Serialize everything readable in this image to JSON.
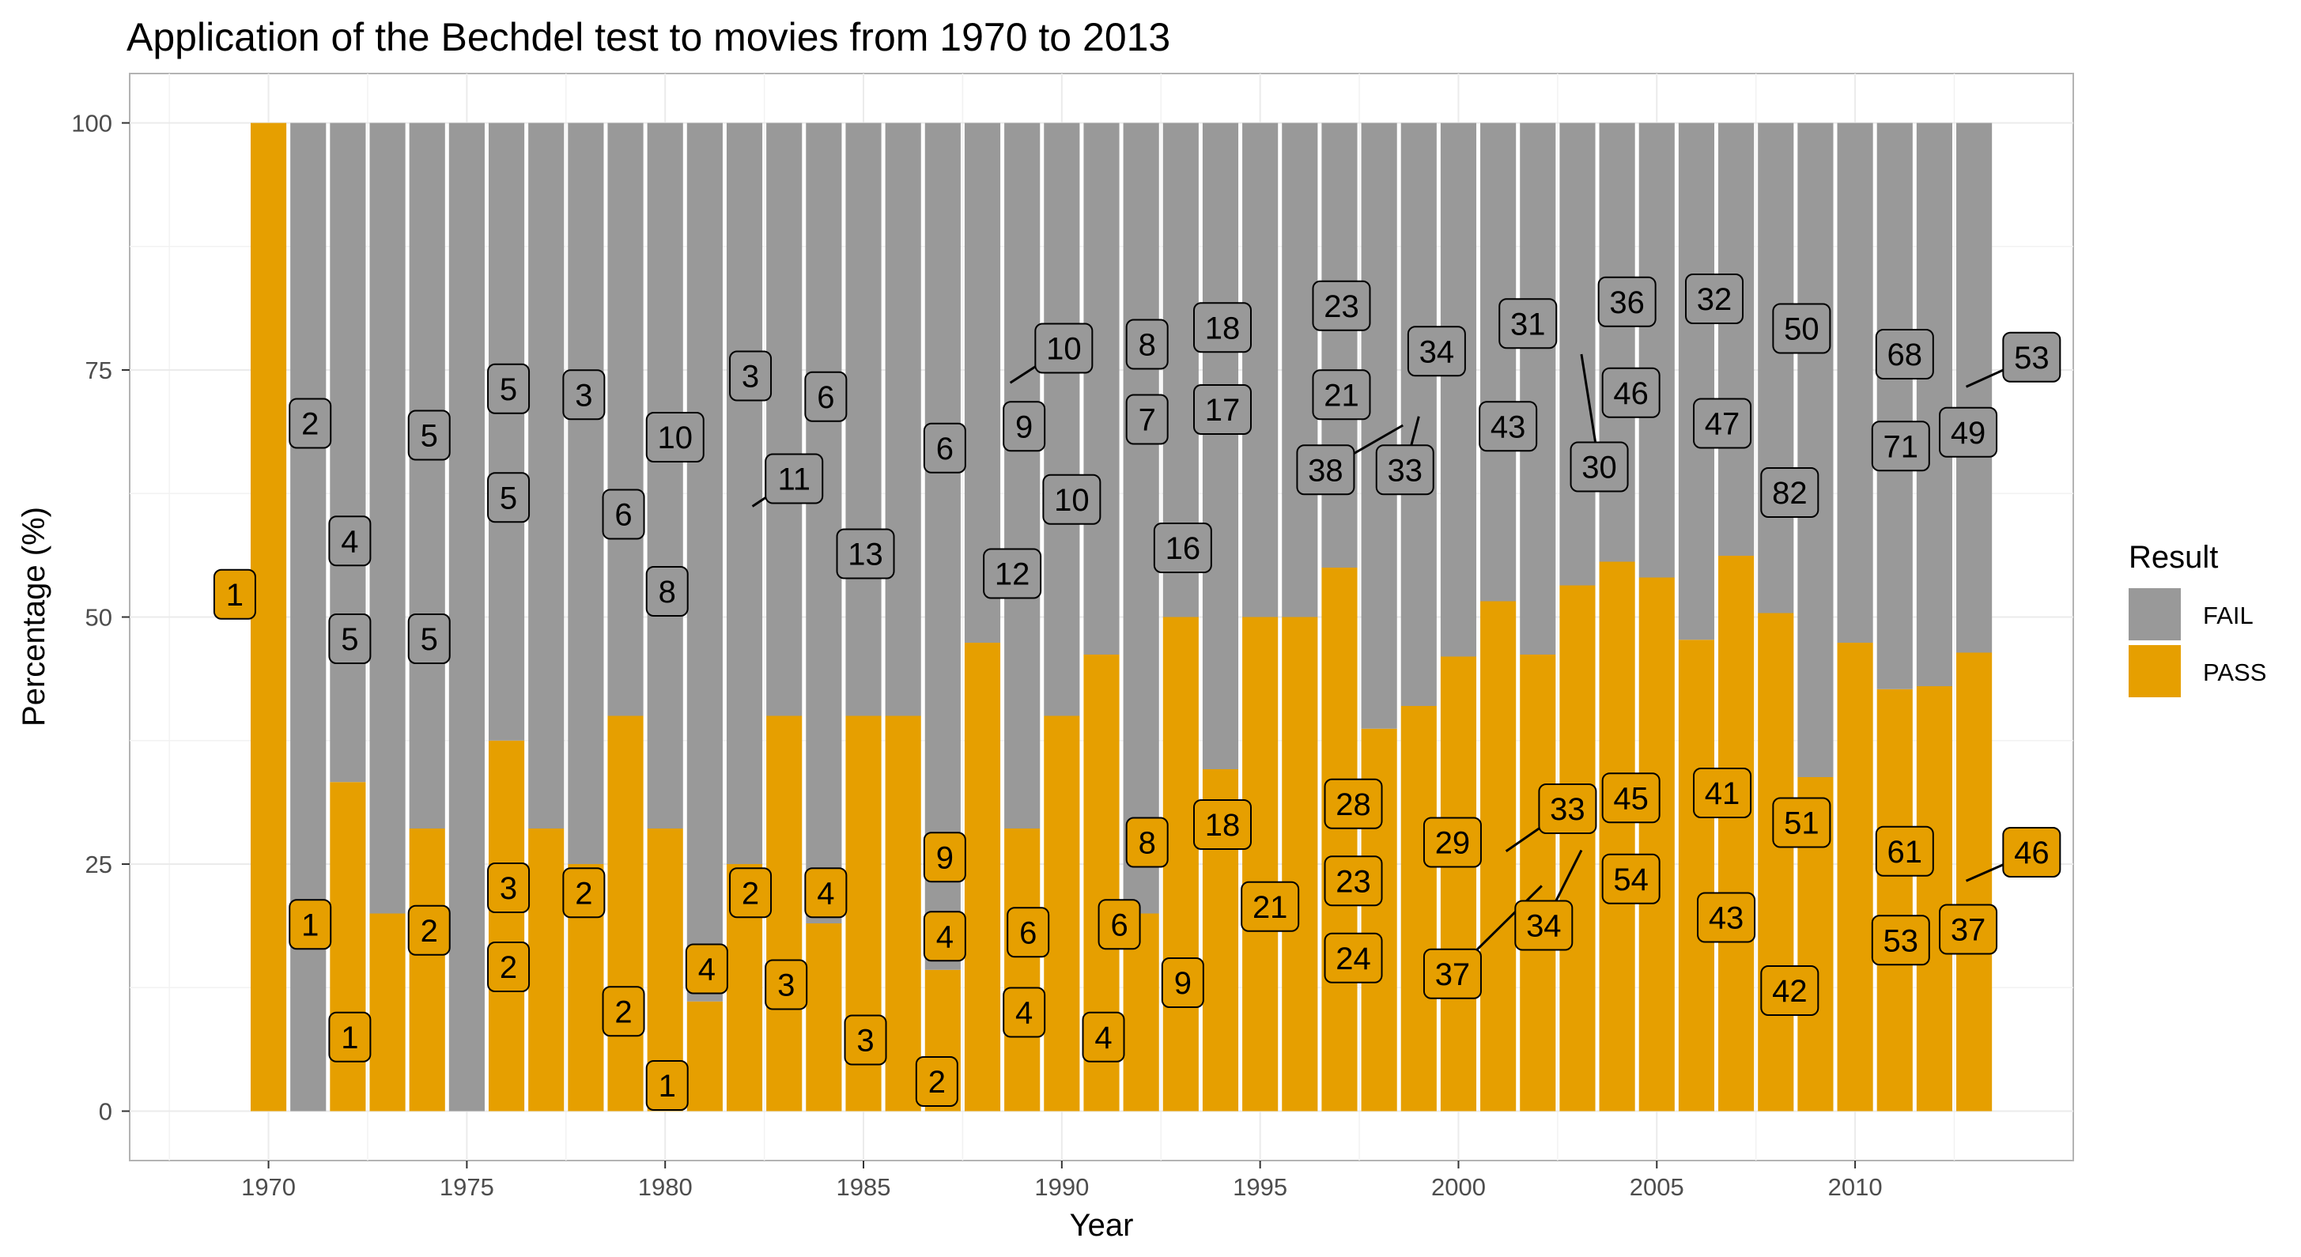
{
  "chart_data": {
    "type": "bar",
    "stacked": true,
    "title": "Application of the Bechdel test to movies from 1970 to 2013",
    "xlabel": "Year",
    "ylabel": "Percentage (%)",
    "xlim": [
      1966.5,
      2015.5
    ],
    "ylim": [
      -5,
      105
    ],
    "x_ticks": [
      1970,
      1975,
      1980,
      1985,
      1990,
      1995,
      2000,
      2005,
      2010
    ],
    "y_ticks": [
      0,
      25,
      50,
      75,
      100
    ],
    "grid": true,
    "legend": {
      "title": "Result",
      "position": "right",
      "entries": [
        {
          "name": "FAIL",
          "color": "#999999"
        },
        {
          "name": "PASS",
          "color": "#E69F00"
        }
      ]
    },
    "x": [
      1970,
      1971,
      1972,
      1973,
      1974,
      1975,
      1976,
      1977,
      1978,
      1979,
      1980,
      1981,
      1982,
      1983,
      1984,
      1985,
      1986,
      1987,
      1988,
      1989,
      1990,
      1991,
      1992,
      1993,
      1994,
      1995,
      1996,
      1997,
      1998,
      1999,
      2000,
      2001,
      2002,
      2003,
      2004,
      2005,
      2006,
      2007,
      2008,
      2009,
      2010,
      2011,
      2012,
      2013
    ],
    "series": [
      {
        "name": "PASS",
        "values": [
          100,
          0,
          33.3,
          20,
          28.6,
          0,
          37.5,
          28.6,
          25,
          40,
          28.6,
          11.1,
          25,
          40,
          19,
          40,
          40,
          14.3,
          47.4,
          28.6,
          40,
          46.2,
          20,
          50,
          34.6,
          50,
          50,
          55,
          38.7,
          41,
          46,
          51.6,
          46.2,
          53.2,
          55.6,
          54,
          47.7,
          56.2,
          50.4,
          33.8,
          47.4,
          42.7,
          43,
          46.4
        ]
      },
      {
        "name": "FAIL",
        "values": [
          0,
          100,
          66.7,
          80,
          71.4,
          100,
          62.5,
          71.4,
          75,
          60,
          71.4,
          88.9,
          75,
          60,
          81,
          60,
          60,
          85.7,
          52.6,
          71.4,
          60,
          53.8,
          80,
          50,
          65.4,
          50,
          50,
          45,
          61.3,
          59,
          54,
          48.4,
          53.8,
          46.8,
          44.4,
          46,
          52.3,
          43.8,
          49.6,
          66.2,
          52.6,
          57.3,
          57,
          53.6
        ]
      }
    ],
    "annotations": [
      {
        "text": "1",
        "result": "PASS",
        "x": 1969.15,
        "y": 52.3
      },
      {
        "text": "2",
        "result": "FAIL",
        "x": 1971.05,
        "y": 69.6
      },
      {
        "text": "1",
        "result": "PASS",
        "x": 1971.05,
        "y": 18.9
      },
      {
        "text": "4",
        "result": "FAIL",
        "x": 1972.05,
        "y": 57.7
      },
      {
        "text": "5",
        "result": "FAIL",
        "x": 1972.05,
        "y": 47.8
      },
      {
        "text": "1",
        "result": "PASS",
        "x": 1972.05,
        "y": 7.5
      },
      {
        "text": "5",
        "result": "FAIL",
        "x": 1974.05,
        "y": 68.4
      },
      {
        "text": "5",
        "result": "FAIL",
        "x": 1974.05,
        "y": 47.8
      },
      {
        "text": "2",
        "result": "PASS",
        "x": 1974.05,
        "y": 18.3
      },
      {
        "text": "5",
        "result": "FAIL",
        "x": 1976.05,
        "y": 73.1
      },
      {
        "text": "5",
        "result": "FAIL",
        "x": 1976.05,
        "y": 62.1
      },
      {
        "text": "3",
        "result": "PASS",
        "x": 1976.05,
        "y": 22.6
      },
      {
        "text": "2",
        "result": "PASS",
        "x": 1976.05,
        "y": 14.6
      },
      {
        "text": "3",
        "result": "FAIL",
        "x": 1977.95,
        "y": 72.5
      },
      {
        "text": "2",
        "result": "PASS",
        "x": 1977.95,
        "y": 22.1
      },
      {
        "text": "6",
        "result": "FAIL",
        "x": 1978.95,
        "y": 60.4
      },
      {
        "text": "2",
        "result": "PASS",
        "x": 1978.95,
        "y": 10.1
      },
      {
        "text": "10",
        "result": "FAIL",
        "x": 1980.25,
        "y": 68.2
      },
      {
        "text": "8",
        "result": "FAIL",
        "x": 1980.05,
        "y": 52.6
      },
      {
        "text": "1",
        "result": "PASS",
        "x": 1980.05,
        "y": 2.6
      },
      {
        "text": "4",
        "result": "PASS",
        "x": 1981.05,
        "y": 14.4
      },
      {
        "text": "3",
        "result": "FAIL",
        "x": 1982.15,
        "y": 74.4
      },
      {
        "text": "11",
        "result": "FAIL",
        "x": 1983.25,
        "y": 64,
        "leader": [
          1982.2,
          61.2
        ]
      },
      {
        "text": "2",
        "result": "PASS",
        "x": 1982.15,
        "y": 22.1
      },
      {
        "text": "3",
        "result": "PASS",
        "x": 1983.05,
        "y": 12.8
      },
      {
        "text": "6",
        "result": "FAIL",
        "x": 1984.05,
        "y": 72.3
      },
      {
        "text": "4",
        "result": "PASS",
        "x": 1984.05,
        "y": 22.1
      },
      {
        "text": "13",
        "result": "FAIL",
        "x": 1985.05,
        "y": 56.4
      },
      {
        "text": "3",
        "result": "PASS",
        "x": 1985.05,
        "y": 7.2
      },
      {
        "text": "6",
        "result": "FAIL",
        "x": 1987.05,
        "y": 67.1
      },
      {
        "text": "9",
        "result": "PASS",
        "x": 1987.05,
        "y": 25.7
      },
      {
        "text": "4",
        "result": "PASS",
        "x": 1987.05,
        "y": 17.7
      },
      {
        "text": "2",
        "result": "PASS",
        "x": 1986.85,
        "y": 3
      },
      {
        "text": "10",
        "result": "FAIL",
        "x": 1990.05,
        "y": 77.2,
        "leader": [
          1988.7,
          73.7
        ]
      },
      {
        "text": "9",
        "result": "FAIL",
        "x": 1989.05,
        "y": 69.3
      },
      {
        "text": "12",
        "result": "FAIL",
        "x": 1988.75,
        "y": 54.4
      },
      {
        "text": "6",
        "result": "PASS",
        "x": 1989.15,
        "y": 18.1
      },
      {
        "text": "4",
        "result": "PASS",
        "x": 1989.05,
        "y": 10
      },
      {
        "text": "10",
        "result": "FAIL",
        "x": 1990.25,
        "y": 61.9
      },
      {
        "text": "4",
        "result": "PASS",
        "x": 1991.05,
        "y": 7.5
      },
      {
        "text": "8",
        "result": "FAIL",
        "x": 1992.15,
        "y": 77.6
      },
      {
        "text": "7",
        "result": "FAIL",
        "x": 1992.15,
        "y": 70
      },
      {
        "text": "8",
        "result": "PASS",
        "x": 1992.15,
        "y": 27.2
      },
      {
        "text": "6",
        "result": "PASS",
        "x": 1991.45,
        "y": 18.9
      },
      {
        "text": "18",
        "result": "FAIL",
        "x": 1994.05,
        "y": 79.3
      },
      {
        "text": "17",
        "result": "FAIL",
        "x": 1994.05,
        "y": 71
      },
      {
        "text": "16",
        "result": "FAIL",
        "x": 1993.05,
        "y": 57
      },
      {
        "text": "18",
        "result": "PASS",
        "x": 1994.05,
        "y": 29
      },
      {
        "text": "9",
        "result": "PASS",
        "x": 1993.05,
        "y": 13
      },
      {
        "text": "21",
        "result": "PASS",
        "x": 1995.25,
        "y": 20.7
      },
      {
        "text": "23",
        "result": "FAIL",
        "x": 1997.05,
        "y": 81.5
      },
      {
        "text": "21",
        "result": "FAIL",
        "x": 1997.05,
        "y": 72.5
      },
      {
        "text": "38",
        "result": "FAIL",
        "x": 1996.65,
        "y": 64.9,
        "leader": [
          1998.6,
          69.4
        ]
      },
      {
        "text": "28",
        "result": "PASS",
        "x": 1997.35,
        "y": 31.1
      },
      {
        "text": "23",
        "result": "PASS",
        "x": 1997.35,
        "y": 23.3
      },
      {
        "text": "24",
        "result": "PASS",
        "x": 1997.35,
        "y": 15.5
      },
      {
        "text": "34",
        "result": "FAIL",
        "x": 1999.45,
        "y": 76.9
      },
      {
        "text": "33",
        "result": "FAIL",
        "x": 1998.65,
        "y": 64.9,
        "leader": [
          1999.0,
          70.3
        ]
      },
      {
        "text": "29",
        "result": "PASS",
        "x": 1999.85,
        "y": 27.2
      },
      {
        "text": "37",
        "result": "PASS",
        "x": 1999.85,
        "y": 13.9,
        "leader": [
          2002.1,
          22.8
        ]
      },
      {
        "text": "31",
        "result": "FAIL",
        "x": 2001.75,
        "y": 79.7
      },
      {
        "text": "43",
        "result": "FAIL",
        "x": 2001.25,
        "y": 69.3
      },
      {
        "text": "33",
        "result": "PASS",
        "x": 2002.75,
        "y": 30.6,
        "leader": [
          2001.2,
          26.3
        ]
      },
      {
        "text": "34",
        "result": "PASS",
        "x": 2002.15,
        "y": 18.8,
        "leader": [
          2003.1,
          26.4
        ]
      },
      {
        "text": "36",
        "result": "FAIL",
        "x": 2004.25,
        "y": 81.9
      },
      {
        "text": "46",
        "result": "FAIL",
        "x": 2004.35,
        "y": 72.7
      },
      {
        "text": "30",
        "result": "FAIL",
        "x": 2003.55,
        "y": 65.2,
        "leader": [
          2003.1,
          76.6
        ]
      },
      {
        "text": "45",
        "result": "PASS",
        "x": 2004.35,
        "y": 31.7
      },
      {
        "text": "54",
        "result": "PASS",
        "x": 2004.35,
        "y": 23.5
      },
      {
        "text": "32",
        "result": "FAIL",
        "x": 2006.45,
        "y": 82.2
      },
      {
        "text": "47",
        "result": "FAIL",
        "x": 2006.65,
        "y": 69.6
      },
      {
        "text": "41",
        "result": "PASS",
        "x": 2006.65,
        "y": 32.2
      },
      {
        "text": "43",
        "result": "PASS",
        "x": 2006.75,
        "y": 19.6
      },
      {
        "text": "50",
        "result": "FAIL",
        "x": 2008.65,
        "y": 79.2
      },
      {
        "text": "82",
        "result": "FAIL",
        "x": 2008.35,
        "y": 62.6
      },
      {
        "text": "51",
        "result": "PASS",
        "x": 2008.65,
        "y": 29.2
      },
      {
        "text": "42",
        "result": "PASS",
        "x": 2008.35,
        "y": 12.2
      },
      {
        "text": "68",
        "result": "FAIL",
        "x": 2011.25,
        "y": 76.6
      },
      {
        "text": "71",
        "result": "FAIL",
        "x": 2011.15,
        "y": 67.3
      },
      {
        "text": "61",
        "result": "PASS",
        "x": 2011.25,
        "y": 26.3
      },
      {
        "text": "53",
        "result": "PASS",
        "x": 2011.15,
        "y": 17.3
      },
      {
        "text": "53",
        "result": "FAIL",
        "x": 2014.45,
        "y": 76.3,
        "leader": [
          2012.8,
          73.3
        ]
      },
      {
        "text": "49",
        "result": "FAIL",
        "x": 2012.85,
        "y": 68.7
      },
      {
        "text": "46",
        "result": "PASS",
        "x": 2014.45,
        "y": 26.2,
        "leader": [
          2012.8,
          23.3
        ]
      },
      {
        "text": "37",
        "result": "PASS",
        "x": 2012.85,
        "y": 18.4
      }
    ]
  }
}
